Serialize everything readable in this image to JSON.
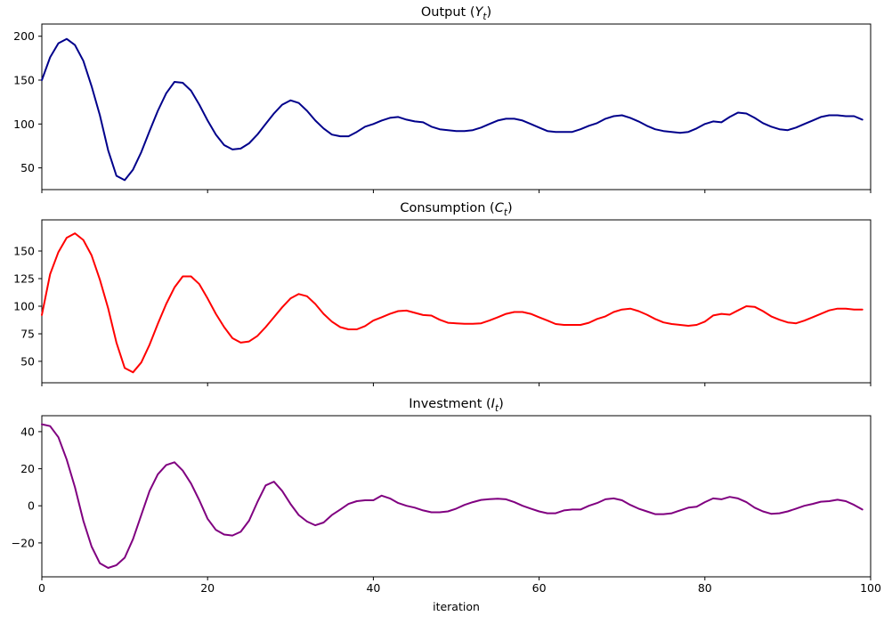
{
  "figure": {
    "background": "#ffffff",
    "xlabel": "iteration",
    "x_ticks": [
      0,
      20,
      40,
      60,
      80,
      100
    ],
    "x_range": [
      0,
      100
    ]
  },
  "chart_data": [
    {
      "type": "line",
      "title": "Output (Y_t)",
      "title_parts": {
        "prefix": "Output (",
        "var": "Y",
        "sub": "t",
        "suffix": ")"
      },
      "series_name": "output",
      "color": "#00008B",
      "line_width": 2,
      "x_start": 0,
      "x_step": 1,
      "ylim": [
        25.3,
        213.9
      ],
      "yticks": [
        50,
        100,
        150,
        200
      ],
      "grid": false,
      "legend": "none",
      "values": [
        150,
        176,
        192,
        197,
        190,
        172,
        143,
        110,
        70,
        41,
        36,
        48,
        68,
        92,
        115,
        135,
        148,
        147,
        138,
        122,
        104,
        88,
        76,
        71,
        72,
        78,
        88,
        100,
        112,
        122,
        127,
        124,
        115,
        104,
        95,
        88,
        86,
        86,
        91,
        97,
        100,
        104,
        107,
        108,
        105,
        103,
        102,
        97,
        94,
        93,
        92,
        92,
        93,
        96,
        100,
        104,
        106,
        106,
        104,
        100,
        96,
        92,
        91,
        91,
        91,
        94,
        98,
        101,
        106,
        109,
        110,
        107,
        103,
        98,
        94,
        92,
        91,
        90,
        91,
        95,
        100,
        103,
        102,
        108,
        113,
        112,
        107,
        101,
        97,
        94,
        93,
        96,
        100,
        104,
        108,
        110,
        110,
        109,
        109,
        105
      ]
    },
    {
      "type": "line",
      "title": "Consumption (C_t)",
      "title_parts": {
        "prefix": "Consumption (",
        "var": "C",
        "sub": "t",
        "suffix": ")"
      },
      "series_name": "consumption",
      "color": "#FF0000",
      "line_width": 2,
      "x_start": 0,
      "x_step": 1,
      "ylim": [
        30.6,
        178.2
      ],
      "yticks": [
        50,
        75,
        100,
        125,
        150
      ],
      "grid": false,
      "legend": "none",
      "values": [
        92,
        129,
        149,
        162,
        166,
        160,
        146,
        124,
        98,
        67,
        44,
        40,
        49,
        65,
        84,
        102,
        117,
        127,
        127,
        120,
        107,
        93,
        81,
        71,
        67,
        68,
        73,
        81,
        90,
        99,
        107,
        111,
        109,
        102,
        93,
        86,
        81,
        79,
        79,
        82,
        87,
        90,
        93,
        95.5,
        96,
        94,
        92,
        91.5,
        87.7,
        85,
        84.5,
        84,
        84,
        84.5,
        87,
        90,
        93,
        94.7,
        94.7,
        93,
        90,
        87,
        83.8,
        83,
        83,
        83,
        85,
        88.4,
        90.8,
        94.7,
        97,
        97.8,
        95.5,
        92.3,
        88.4,
        85.3,
        83.8,
        83,
        82.2,
        83,
        86,
        91.6,
        93,
        92.3,
        96.2,
        100,
        99.4,
        95.5,
        90.8,
        87.7,
        85.3,
        84.5,
        86.9,
        90,
        93,
        96.2,
        97.8,
        97.8,
        97,
        97
      ]
    },
    {
      "type": "line",
      "title": "Investment (I_t)",
      "title_parts": {
        "prefix": "Investment (",
        "var": "I",
        "sub": "t",
        "suffix": ")"
      },
      "series_name": "investment",
      "color": "#800080",
      "line_width": 2,
      "x_start": 0,
      "x_step": 1,
      "ylim": [
        -38.3,
        48.6
      ],
      "yticks": [
        -20,
        0,
        20,
        40
      ],
      "grid": false,
      "legend": "none",
      "values": [
        44,
        43,
        37,
        25,
        10,
        -8,
        -22,
        -31,
        -33.5,
        -32,
        -28,
        -18,
        -5,
        8,
        17,
        22,
        23.5,
        19,
        12,
        3,
        -7,
        -13,
        -15.5,
        -16,
        -14,
        -8,
        2,
        11,
        13,
        8,
        1,
        -5,
        -8.5,
        -10.5,
        -9,
        -5,
        -2,
        1,
        2.5,
        3,
        3,
        5.5,
        4,
        1.5,
        0,
        -1,
        -2.5,
        -3.5,
        -3.5,
        -3,
        -1.5,
        0.5,
        2,
        3.2,
        3.6,
        3.8,
        3.5,
        2,
        0,
        -1.5,
        -3,
        -4,
        -4,
        -2.5,
        -2,
        -2,
        0,
        1.5,
        3.5,
        4,
        3,
        0.5,
        -1.5,
        -3,
        -4.5,
        -4.5,
        -4,
        -2.5,
        -1,
        -0.5,
        2,
        4,
        3.5,
        4.8,
        4,
        2,
        -1,
        -3,
        -4.3,
        -4,
        -3,
        -1.5,
        0,
        1,
        2.2,
        2.5,
        3.3,
        2.5,
        0.5,
        -2
      ]
    }
  ]
}
